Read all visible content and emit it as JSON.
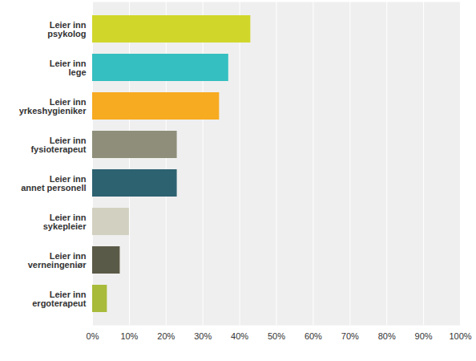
{
  "chart_data": {
    "type": "bar",
    "orientation": "horizontal",
    "categories": [
      "Leier inn psykolog",
      "Leier inn lege",
      "Leier inn yrkeshygieniker",
      "Leier inn fysioterapeut",
      "Leier inn annet personell",
      "Leier inn sykepleier",
      "Leier inn verneingeniør",
      "Leier inn ergoterapeut"
    ],
    "values": [
      43,
      37,
      34.5,
      23,
      23,
      10,
      7.5,
      4
    ],
    "colors": [
      "#d0d72a",
      "#35bfc0",
      "#f7ab21",
      "#8e8e7a",
      "#2d6271",
      "#d2d0c0",
      "#5a5a48",
      "#a8bb3a"
    ],
    "xlim": [
      0,
      100
    ],
    "xticks": [
      {
        "value": 0,
        "label": "0%"
      },
      {
        "value": 10,
        "label": "10%"
      },
      {
        "value": 20,
        "label": "20%"
      },
      {
        "value": 30,
        "label": "30%"
      },
      {
        "value": 40,
        "label": "40%"
      },
      {
        "value": 50,
        "label": "50%"
      },
      {
        "value": 60,
        "label": "60%"
      },
      {
        "value": 70,
        "label": "70%"
      },
      {
        "value": 80,
        "label": "80%"
      },
      {
        "value": 90,
        "label": "90%"
      },
      {
        "value": 100,
        "label": "100%"
      }
    ],
    "grid": true
  }
}
